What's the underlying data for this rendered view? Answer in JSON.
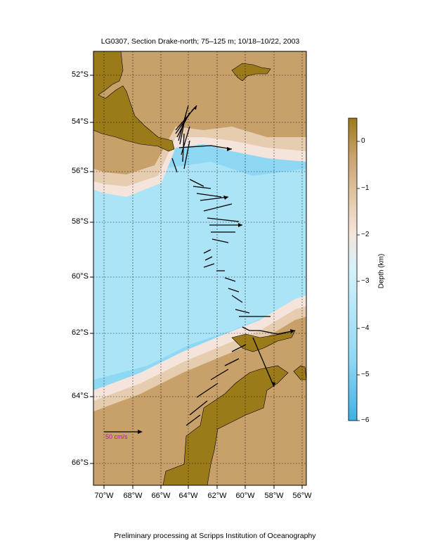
{
  "plot": {
    "title": "LG0307, Section Drake-north; 75–125 m; 10/18–10/22, 2003",
    "footer": "Preliminary processing at Scripps Institution of Oceanography",
    "scale_arrow_label": "50 cm/s"
  },
  "axes": {
    "lat_labels": [
      "52°S",
      "54°S",
      "56°S",
      "58°S",
      "60°S",
      "62°S",
      "64°S",
      "66°S"
    ],
    "lon_labels": [
      "70°W",
      "68°W",
      "66°W",
      "64°W",
      "62°W",
      "60°W",
      "58°W",
      "56°W"
    ]
  },
  "colorbar": {
    "title": "Depth (km)",
    "ticks": [
      "0",
      "−1",
      "−2",
      "−3",
      "−4",
      "−5",
      "−6"
    ],
    "colors": {
      "land": "#9b7a1a",
      "shallow": "#c8a06a",
      "shelf": "#e6cdb0",
      "slope": "#f5e4dc",
      "mid": "#b8e8f8",
      "deep": "#8ed8f4",
      "deepest": "#5fc2ee"
    }
  },
  "legend": {
    "arrow_color": "#000000",
    "scale_color": "#cc00cc"
  }
}
